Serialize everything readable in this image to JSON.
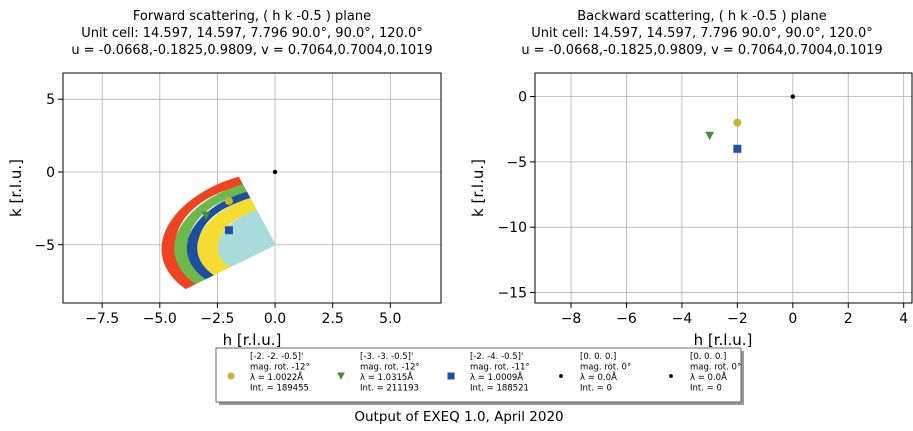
{
  "chart_data": [
    {
      "type": "scatter",
      "title": [
        "Forward scattering, ( h k -0.5 ) plane",
        "Unit cell: 14.597, 14.597, 7.796  90.0°, 90.0°, 120.0°",
        "u = -0.0668,-0.1825,0.9809, v = 0.7064,0.7004,0.1019"
      ],
      "xlabel": "h  [r.l.u.]",
      "ylabel": "k  [r.l.u.]",
      "xlim": [
        -9.2,
        7.2
      ],
      "ylim": [
        -9.0,
        6.8
      ],
      "xticks": [
        -7.5,
        -5.0,
        -2.5,
        0.0,
        2.5,
        5.0
      ],
      "xtick_labels": [
        "−7.5",
        "−5.0",
        "−2.5",
        "0.0",
        "2.5",
        "5.0"
      ],
      "yticks": [
        5,
        0,
        -5
      ],
      "ytick_labels": [
        "5",
        "0",
        "−5"
      ],
      "grid": true,
      "coverage_bands": [
        {
          "color": "#ee4422",
          "r_out": 4.9,
          "r_in": 4.35,
          "half_out": 0.55,
          "half_in": 0.5
        },
        {
          "color": "#6cb84a",
          "r_out": 4.35,
          "r_in": 3.8,
          "half_out": 0.5,
          "half_in": 0.45
        },
        {
          "color": "#1c4fa0",
          "r_out": 3.8,
          "r_in": 3.35,
          "half_out": 0.45,
          "half_in": 0.4
        },
        {
          "color": "#f5dc33",
          "r_out": 3.35,
          "r_in": 2.45,
          "half_out": 0.4,
          "half_in": 0.32
        },
        {
          "color": "#a8dcdc",
          "r_out": 2.45,
          "r_in": 0.0,
          "half_out": 0.32,
          "half_in": 0.32
        }
      ],
      "points": [
        {
          "x": -2.0,
          "y": -2.0,
          "marker": "circle",
          "color": "#c8b432"
        },
        {
          "x": -3.0,
          "y": -3.0,
          "marker": "triangle-down",
          "color": "#4a8c3c"
        },
        {
          "x": -2.0,
          "y": -4.0,
          "marker": "square",
          "color": "#1f4fa8"
        },
        {
          "x": 0.0,
          "y": 0.0,
          "marker": "dot",
          "color": "#000000"
        }
      ]
    },
    {
      "type": "scatter",
      "title": [
        "Backward scattering, ( h k -0.5 ) plane",
        "Unit cell: 14.597, 14.597, 7.796  90.0°, 90.0°, 120.0°",
        "u = -0.0668,-0.1825,0.9809, v = 0.7064,0.7004,0.1019"
      ],
      "xlabel": "h  [r.l.u.]",
      "ylabel": "k  [r.l.u.]",
      "xlim": [
        -9.3,
        4.3
      ],
      "ylim": [
        -15.8,
        1.8
      ],
      "xticks": [
        -8,
        -6,
        -4,
        -2,
        0,
        2,
        4
      ],
      "xtick_labels": [
        "−8",
        "−6",
        "−4",
        "−2",
        "0",
        "2",
        "4"
      ],
      "yticks": [
        0,
        -5,
        -10,
        -15
      ],
      "ytick_labels": [
        "0",
        "−5",
        "−10",
        "−15"
      ],
      "grid": true,
      "points": [
        {
          "x": -2.0,
          "y": -2.0,
          "marker": "circle",
          "color": "#c8b432"
        },
        {
          "x": -3.0,
          "y": -3.0,
          "marker": "triangle-down",
          "color": "#4a8c3c"
        },
        {
          "x": -2.0,
          "y": -4.0,
          "marker": "square",
          "color": "#1f4fa8"
        },
        {
          "x": 0.0,
          "y": 0.0,
          "marker": "dot",
          "color": "#000000"
        }
      ]
    }
  ],
  "legend": [
    {
      "marker": "circle",
      "color": "#c8b432",
      "lines": [
        "[-2.  -2.  -0.5]'",
        "mag. rot. -12°",
        "λ = 1.0022Å",
        "Int. = 189455"
      ]
    },
    {
      "marker": "triangle-down",
      "color": "#4a8c3c",
      "lines": [
        "[-3.  -3.  -0.5]'",
        "mag. rot. -12°",
        "λ = 1.0315Å",
        "Int. = 211193"
      ]
    },
    {
      "marker": "square",
      "color": "#1f4fa8",
      "lines": [
        "[-2.  -4.  -0.5]'",
        "mag. rot. -11°",
        "λ = 1.0009Å",
        "Int. = 188521"
      ]
    },
    {
      "marker": "dot",
      "color": "#000000",
      "lines": [
        "[0. 0. 0.]",
        "mag. rot. 0°",
        "λ = 0.0Å",
        "Int. = 0"
      ]
    },
    {
      "marker": "dot",
      "color": "#000000",
      "lines": [
        "[0. 0. 0.]",
        "mag. rot. 0°",
        "λ = 0.0Å",
        "Int. = 0"
      ]
    }
  ],
  "footer": "Output of EXEQ 1.0, April 2020"
}
